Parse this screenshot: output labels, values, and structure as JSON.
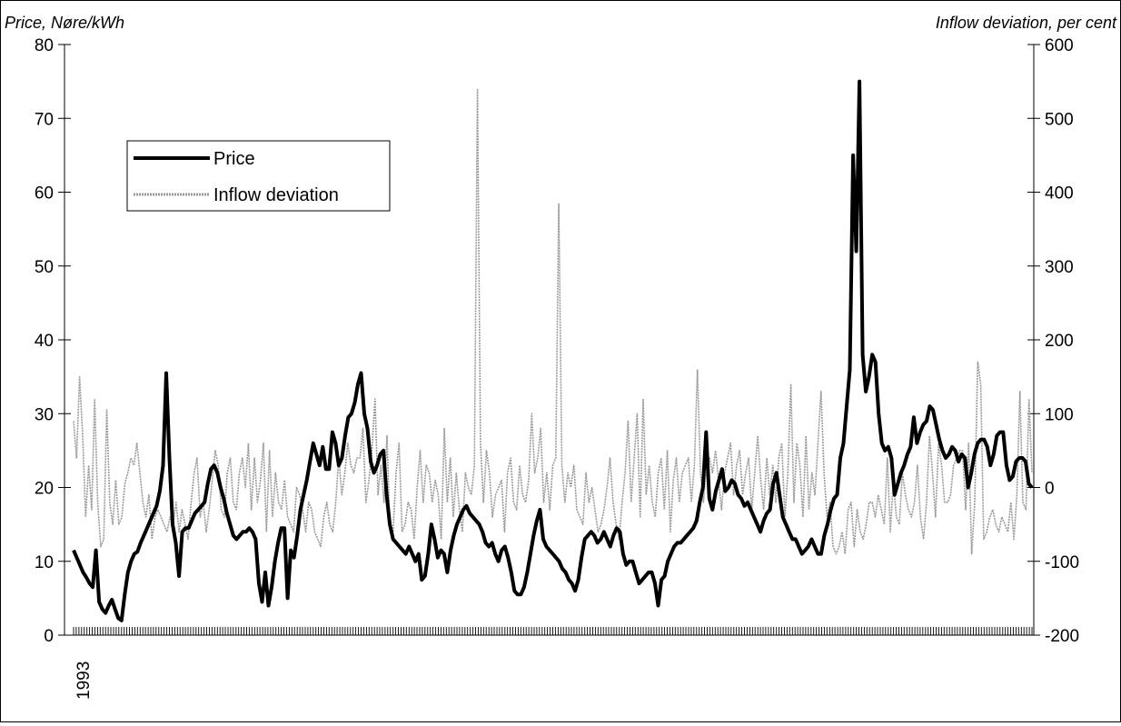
{
  "chart_data": {
    "type": "line",
    "left_axis_title": "Price, Nøre/kWh",
    "right_axis_title": "Inflow deviation, per cent",
    "x_tick_label": "1993",
    "ylim_left": [
      0,
      80
    ],
    "ylim_right": [
      -200,
      600
    ],
    "yticks_left": [
      "0",
      "10",
      "20",
      "30",
      "40",
      "50",
      "60",
      "70",
      "80"
    ],
    "yticks_right": [
      "-200",
      "-100",
      "0",
      "100",
      "200",
      "300",
      "400",
      "500",
      "600"
    ],
    "grid": false,
    "legend_position": "upper-left",
    "series": [
      {
        "name": "Price",
        "axis": "left",
        "color": "#000000",
        "values": [
          11.5,
          10.5,
          9.5,
          8.5,
          7.8,
          7.0,
          6.5,
          11.5,
          4.5,
          3.5,
          3.0,
          4.0,
          4.8,
          3.5,
          2.3,
          2.0,
          5.5,
          8.5,
          10.0,
          11.0,
          11.3,
          12.5,
          13.5,
          14.5,
          15.5,
          16.5,
          17.5,
          19.5,
          23.0,
          35.5,
          24.0,
          15.0,
          12.5,
          8.0,
          14.0,
          14.5,
          14.5,
          15.5,
          16.5,
          17.0,
          17.5,
          18.0,
          20.5,
          22.5,
          23.0,
          22.0,
          20.0,
          18.5,
          16.5,
          15.0,
          13.5,
          13.0,
          13.5,
          14.0,
          14.0,
          14.5,
          14.0,
          13.0,
          7.0,
          4.5,
          8.5,
          4.0,
          6.5,
          10.0,
          12.5,
          14.5,
          14.5,
          5.0,
          11.5,
          10.5,
          13.5,
          17.0,
          19.0,
          21.0,
          23.5,
          26.0,
          24.5,
          23.0,
          25.5,
          22.5,
          22.5,
          27.5,
          26.0,
          23.0,
          24.0,
          27.0,
          29.5,
          30.0,
          31.5,
          34.0,
          35.5,
          30.0,
          28.0,
          23.5,
          22.0,
          23.0,
          24.5,
          25.0,
          19.0,
          15.0,
          13.0,
          12.5,
          12.0,
          11.5,
          11.0,
          12.0,
          11.0,
          10.0,
          11.0,
          7.5,
          8.0,
          11.0,
          15.0,
          13.0,
          10.5,
          11.5,
          11.0,
          8.5,
          11.5,
          13.5,
          15.0,
          16.0,
          17.0,
          17.5,
          16.5,
          16.0,
          15.5,
          15.0,
          14.0,
          12.5,
          12.0,
          12.5,
          11.0,
          10.0,
          11.5,
          12.0,
          10.5,
          8.5,
          6.0,
          5.5,
          5.5,
          6.5,
          8.5,
          11.0,
          13.5,
          15.5,
          17.0,
          13.0,
          12.0,
          11.5,
          11.0,
          10.5,
          10.0,
          9.0,
          8.5,
          7.5,
          7.0,
          6.0,
          7.5,
          10.5,
          13.0,
          13.5,
          14.0,
          13.5,
          12.5,
          13.0,
          14.0,
          13.0,
          12.0,
          13.5,
          14.5,
          14.0,
          11.0,
          9.5,
          10.0,
          10.0,
          8.5,
          7.0,
          7.5,
          8.0,
          8.5,
          8.5,
          7.0,
          4.0,
          7.5,
          8.0,
          10.0,
          11.0,
          12.0,
          12.5,
          12.5,
          13.0,
          13.5,
          14.0,
          14.5,
          15.5,
          18.0,
          20.0,
          27.5,
          18.5,
          17.0,
          19.5,
          21.0,
          22.5,
          19.5,
          20.0,
          21.0,
          20.5,
          19.0,
          18.5,
          17.5,
          18.0,
          17.0,
          16.0,
          15.0,
          14.0,
          15.5,
          16.5,
          17.0,
          20.5,
          22.0,
          19.0,
          16.0,
          15.0,
          14.0,
          13.0,
          13.0,
          12.0,
          11.0,
          11.5,
          12.0,
          13.0,
          12.0,
          11.0,
          11.0,
          13.5,
          15.0,
          17.0,
          18.5,
          19.0,
          24.0,
          26.0,
          31.0,
          36.0,
          65.0,
          52.0,
          75.0,
          38.0,
          33.0,
          35.0,
          38.0,
          37.0,
          30.0,
          26.0,
          25.0,
          25.5,
          24.0,
          19.0,
          20.5,
          22.0,
          23.0,
          24.5,
          25.5,
          29.5,
          26.0,
          27.5,
          28.5,
          29.0,
          31.0,
          30.5,
          28.5,
          26.5,
          25.0,
          24.0,
          24.5,
          25.5,
          25.0,
          23.5,
          24.5,
          24.0,
          20.0,
          22.0,
          24.5,
          26.0,
          26.5,
          26.5,
          25.5,
          23.0,
          24.5,
          27.0,
          27.5,
          27.5,
          23.0,
          21.0,
          21.5,
          23.5,
          24.0,
          24.0,
          23.5,
          20.5,
          20.0
        ]
      },
      {
        "name": "Inflow deviation",
        "axis": "right",
        "color": "#9a9a9a",
        "values": [
          90,
          40,
          150,
          70,
          -40,
          30,
          -30,
          120,
          -20,
          -80,
          -70,
          105,
          -20,
          -50,
          10,
          -50,
          -40,
          5,
          20,
          40,
          30,
          60,
          20,
          -20,
          -40,
          -10,
          -70,
          -40,
          -30,
          -40,
          -50,
          -60,
          -40,
          -50,
          -20,
          -60,
          -30,
          -50,
          -70,
          -20,
          20,
          40,
          -40,
          -20,
          -60,
          -30,
          10,
          50,
          30,
          -30,
          -40,
          20,
          40,
          -20,
          -30,
          20,
          40,
          0,
          60,
          -30,
          40,
          -20,
          10,
          60,
          -60,
          50,
          -40,
          20,
          -20,
          -30,
          10,
          -40,
          -50,
          -60,
          0,
          -10,
          -30,
          -60,
          -20,
          -30,
          -60,
          -70,
          -80,
          -40,
          -20,
          -50,
          -60,
          -20,
          40,
          -10,
          20,
          60,
          30,
          20,
          40,
          40,
          80,
          -20,
          10,
          50,
          120,
          -10,
          30,
          -20,
          70,
          -60,
          -60,
          20,
          60,
          -60,
          -50,
          -20,
          -30,
          -70,
          0,
          50,
          -20,
          30,
          20,
          -20,
          10,
          -10,
          -70,
          80,
          -20,
          40,
          -40,
          20,
          -30,
          -60,
          20,
          0,
          -10,
          30,
          540,
          60,
          -20,
          50,
          20,
          -40,
          -10,
          0,
          10,
          -60,
          20,
          40,
          -20,
          -30,
          30,
          -10,
          -20,
          10,
          100,
          20,
          40,
          80,
          -20,
          20,
          -30,
          30,
          40,
          385,
          30,
          -20,
          20,
          0,
          30,
          -30,
          -40,
          -50,
          20,
          -20,
          0,
          -30,
          -60,
          -50,
          -30,
          0,
          40,
          -20,
          -50,
          -70,
          -20,
          20,
          90,
          -20,
          40,
          100,
          -40,
          120,
          -10,
          30,
          -20,
          -40,
          20,
          40,
          -30,
          50,
          -60,
          10,
          40,
          -20,
          20,
          30,
          40,
          -20,
          30,
          160,
          20,
          -20,
          30,
          40,
          20,
          50,
          10,
          -30,
          20,
          40,
          60,
          -10,
          30,
          50,
          -10,
          20,
          40,
          -30,
          20,
          70,
          10,
          -30,
          40,
          -10,
          30,
          -20,
          40,
          60,
          -40,
          20,
          140,
          -20,
          60,
          30,
          -40,
          70,
          -30,
          20,
          -10,
          60,
          130,
          20,
          -40,
          -20,
          -80,
          -90,
          -80,
          -60,
          -90,
          -30,
          -20,
          -80,
          -30,
          -60,
          -70,
          -50,
          -20,
          -20,
          -40,
          -10,
          -30,
          -50,
          40,
          -60,
          10,
          -40,
          -50,
          20,
          -10,
          -30,
          -40,
          -20,
          30,
          -40,
          -70,
          -20,
          70,
          20,
          -40,
          60,
          30,
          -20,
          -20,
          -10,
          30,
          40,
          50,
          50,
          -30,
          60,
          -90,
          -20,
          170,
          140,
          -70,
          -60,
          -40,
          -30,
          -50,
          -60,
          -40,
          -50,
          -60,
          -20,
          -70,
          -10,
          130,
          -20,
          -30,
          120,
          20
        ]
      }
    ]
  }
}
